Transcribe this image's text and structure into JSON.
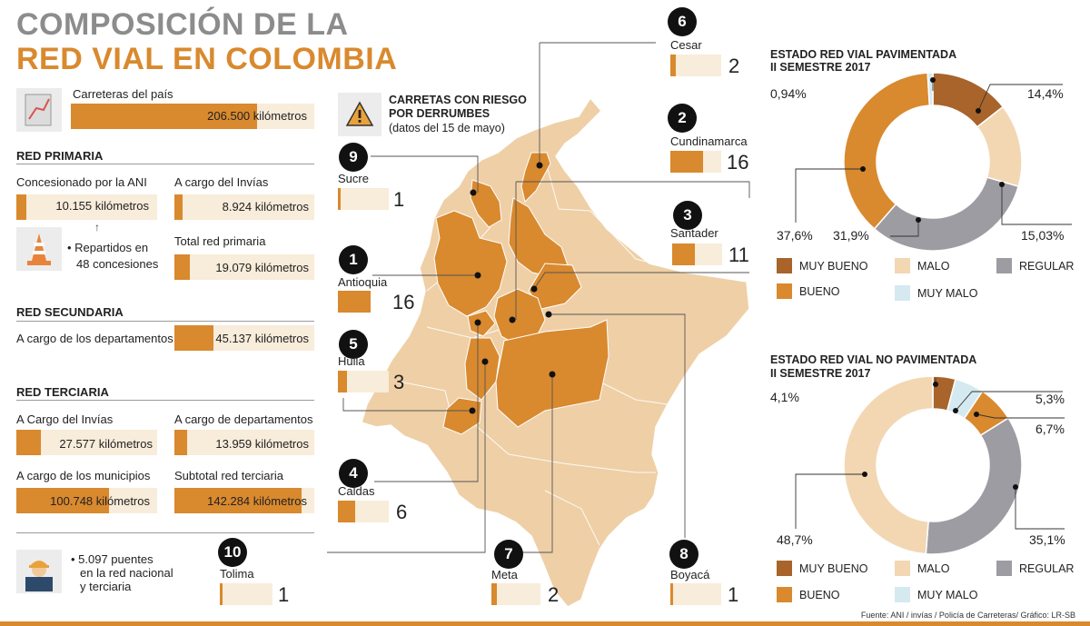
{
  "title": {
    "line1": "COMPOSICIÓN DE LA",
    "line2": "RED VIAL EN COLOMBIA"
  },
  "carreteras": {
    "label": "Carreteras del país",
    "value": "206.500 kilómetros"
  },
  "primaria": {
    "heading": "RED PRIMARIA",
    "ani_label": "Concesionado por la ANI",
    "ani_value": "10.155 kilómetros",
    "invias_label": "A cargo del Invías",
    "invias_value": "8.924 kilómetros",
    "arrow": "↑",
    "note_line1": "• Repartidos en",
    "note_line2": "48 concesiones",
    "total_label": "Total red primaria",
    "total_value": "19.079 kilómetros"
  },
  "secundaria": {
    "heading": "RED SECUNDARIA",
    "label": "A cargo de los departamentos",
    "value": "45.137 kilómetros"
  },
  "terciaria": {
    "heading": "RED TERCIARIA",
    "invias_label": "A Cargo del Invías",
    "invias_value": "27.577 kilómetros",
    "dept_label": "A cargo de departamentos",
    "dept_value": "13.959 kilómetros",
    "mun_label": "A cargo de los municipios",
    "mun_value": "100.748 kilómetros",
    "sub_label": "Subtotal red terciaria",
    "sub_value": "142.284 kilómetros"
  },
  "puentes": {
    "line1": "• 5.097 puentes",
    "line2": "en la red nacional",
    "line3": "y terciaria"
  },
  "riesgo": {
    "line1": "CARRETAS CON RIESGO",
    "line2": "POR DERRUMBES",
    "line3": "(datos del 15 de mayo)"
  },
  "departments": [
    {
      "rank": "1",
      "name": "Antioquia",
      "count": 16
    },
    {
      "rank": "2",
      "name": "Cundinamarca",
      "count": 16
    },
    {
      "rank": "3",
      "name": "Santader",
      "count": 11
    },
    {
      "rank": "4",
      "name": "Caldas",
      "count": 6
    },
    {
      "rank": "5",
      "name": "Huila",
      "count": 3
    },
    {
      "rank": "6",
      "name": "Cesar",
      "count": 2
    },
    {
      "rank": "7",
      "name": "Meta",
      "count": 2
    },
    {
      "rank": "8",
      "name": "Boyacá",
      "count": 1
    },
    {
      "rank": "9",
      "name": "Sucre",
      "count": 1
    },
    {
      "rank": "10",
      "name": "Tolima",
      "count": 1
    }
  ],
  "chart_data": [
    {
      "type": "pie",
      "title": "ESTADO RED VIAL PAVIMENTADA",
      "subtitle": "II SEMESTRE 2017",
      "categories": [
        "MUY BUENO",
        "MALO",
        "REGULAR",
        "BUENO",
        "MUY MALO"
      ],
      "values": [
        14.4,
        15.03,
        31.9,
        37.6,
        0.94
      ],
      "labels": [
        "14,4%",
        "15,03%",
        "31,9%",
        "37,6%",
        "0,94%"
      ]
    },
    {
      "type": "pie",
      "title": "ESTADO RED VIAL NO PAVIMENTADA",
      "subtitle": "II SEMESTRE 2017",
      "categories": [
        "MUY BUENO",
        "MUY MALO",
        "BUENO",
        "REGULAR",
        "MALO"
      ],
      "values": [
        4.1,
        5.3,
        6.7,
        35.1,
        48.7
      ],
      "labels": [
        "4,1%",
        "5,3%",
        "6,7%",
        "35,1%",
        "48,7%"
      ]
    }
  ],
  "legend": {
    "muy_bueno": "MUY BUENO",
    "malo": "MALO",
    "regular": "REGULAR",
    "bueno": "BUENO",
    "muy_malo": "MUY MALO"
  },
  "colors": {
    "muy_bueno": "#a8642b",
    "bueno": "#d9892e",
    "malo": "#f2d7b2",
    "regular": "#9d9ca2",
    "muy_malo": "#d5e9f0",
    "accent": "#d9892e",
    "map_base": "#efcfa6",
    "map_highlight": "#d9892e"
  },
  "source": "Fuente: ANI / invías / Policía de Carreteras/ Gráfico: LR-SB"
}
